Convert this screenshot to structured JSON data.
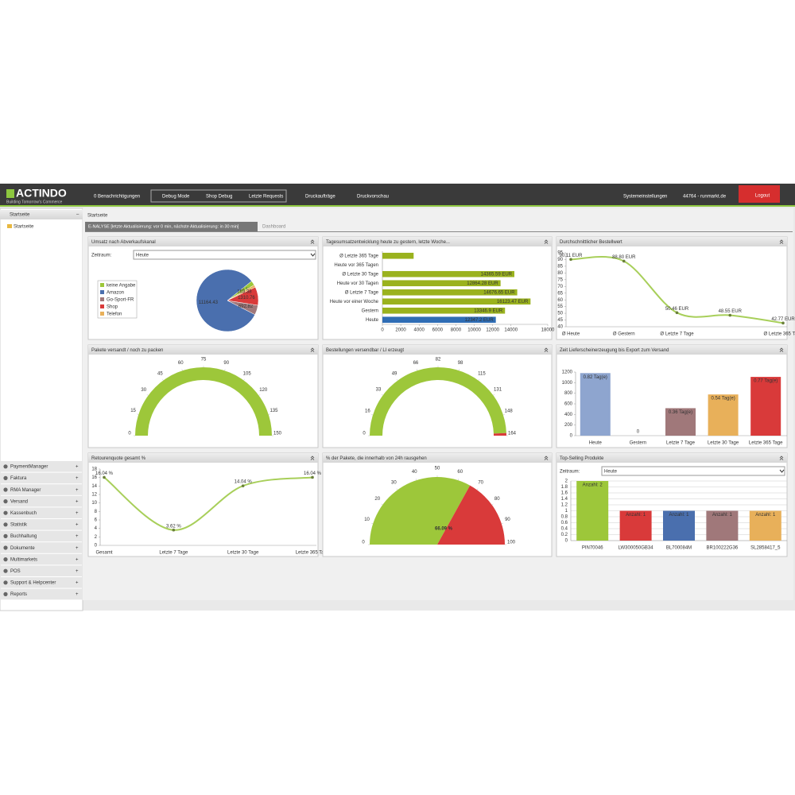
{
  "header": {
    "logo": "ACTINDO",
    "tagline": "Building Tomorrow's Commerce",
    "notifications": "0 Benachrichtigungen",
    "debug_mode": "Debug Mode",
    "shop_debug": "Shop Debug",
    "last_requests": "Letzte Requests",
    "print_jobs": "Druckaufträge",
    "print_preview": "Druckvorschau",
    "settings": "Systemeinstellungen",
    "account": "44764 - runmarkt.de",
    "logout": "Logout"
  },
  "sidebar": {
    "title": "Startseite",
    "tree": "Startseite",
    "menu": [
      "PaymentManager",
      "Faktura",
      "RMA Manager",
      "Versand",
      "Kassenbuch",
      "Statistik",
      "Buchhaltung",
      "Dokumente",
      "Multimarkets",
      "POS",
      "Support & Helpcenter",
      "Reports"
    ]
  },
  "breadcrumb": "Startseite",
  "tabs": [
    "E-NALYSE [letzte Aktualisierung: vor 0 min, nächste Aktualisierung: in 30 min]",
    "Dashboard"
  ],
  "chart_data": [
    {
      "type": "pie",
      "title": "Umsatz nach Abverkaufskanal",
      "filter_label": "Zeitraum:",
      "filter_value": "Heute",
      "categories": [
        "keine Angabe",
        "Amazon",
        "Go-Sport-FR",
        "Shop",
        "Telefon"
      ],
      "values": [
        327.11,
        11164.43,
        692.82,
        1310.76,
        163.38
      ],
      "colors": [
        "#9dc73a",
        "#4a6fae",
        "#a0787a",
        "#d93a3a",
        "#e8b05a"
      ]
    },
    {
      "type": "hbar",
      "title": "Tagesumsatzentwicklung heute zu gestern, letzte Woche...",
      "categories": [
        "Ø Letzte 365 Tage",
        "Heute vor 365 Tagen",
        "Ø Letzte 30 Tage",
        "Heute vor 30 Tagen",
        "Ø Letzte 7 Tage",
        "Heute vor einer Woche",
        "Gestern",
        "Heute"
      ],
      "values": [
        3400,
        null,
        14365.59,
        12864.28,
        14676.65,
        16123.47,
        13346.9,
        12347.2
      ],
      "value_labels": [
        null,
        null,
        "14365.59 EUR",
        "12864.28 EUR",
        "14676.65 EUR",
        "16123.47 EUR",
        "13346.9 EUR",
        "12347.2 EUR"
      ],
      "colors": [
        "#9ab21e",
        "#9ab21e",
        "#9ab21e",
        "#9ab21e",
        "#9ab21e",
        "#9ab21e",
        "#9ab21e",
        "#2f6db5"
      ],
      "xlim": [
        0,
        18000
      ],
      "xticks": [
        0,
        2000,
        4000,
        6000,
        8000,
        10000,
        12000,
        14000,
        18000
      ]
    },
    {
      "type": "line",
      "title": "Durchschnittlicher Bestellwert",
      "categories": [
        "Ø Heute",
        "Ø Gestern",
        "Ø Letzte 7 Tage",
        null,
        "Ø Letzte 365 Tage"
      ],
      "values": [
        90.11,
        88.8,
        50.46,
        48.55,
        42.77
      ],
      "value_labels": [
        "90.11 EUR",
        "88.80 EUR",
        "50.46 EUR",
        "48.55 EUR",
        "42.77 EUR"
      ],
      "color": "#a8cf5a",
      "ylim": [
        40,
        95
      ],
      "yticks": [
        40,
        45,
        50,
        55,
        60,
        65,
        70,
        75,
        80,
        85,
        90,
        95
      ]
    },
    {
      "type": "gauge",
      "title": "Pakete versandt / noch zu packen",
      "value": 150,
      "range": [
        0,
        150
      ],
      "ticks": [
        0,
        15,
        30,
        45,
        60,
        75,
        90,
        105,
        120,
        135,
        150
      ],
      "colors": [
        "#9dc73a",
        "#d93a3a"
      ]
    },
    {
      "type": "gauge",
      "title": "Bestellungen versendbar / LI erzeugt",
      "value": 162,
      "range": [
        0,
        164
      ],
      "ticks": [
        0,
        16,
        33,
        49,
        66,
        82,
        98,
        115,
        131,
        148,
        164
      ],
      "colors": [
        "#9dc73a",
        "#d93a3a"
      ]
    },
    {
      "type": "bar",
      "title": "Zeit Lieferscheinerzeugung bis Export zum Versand",
      "categories": [
        "Heute",
        "Gestern",
        "Letzte 7 Tage",
        "Letzte 30 Tage",
        "Letzte 365 Tage"
      ],
      "values": [
        1180.8,
        0,
        518.4,
        777.6,
        1108.8
      ],
      "value_labels": [
        "0.82 Tag(e)",
        "0",
        "0.36 Tag(e)",
        "0.54 Tag(e)",
        "0.77 Tag(e)"
      ],
      "colors": [
        "#8ea5cf",
        "#8ea5cf",
        "#a0787a",
        "#e8b05a",
        "#d93a3a"
      ],
      "ylim": [
        0,
        1200
      ],
      "yticks": [
        0,
        200,
        400,
        600,
        800,
        1000,
        1200
      ],
      "grid": false
    },
    {
      "type": "line",
      "title": "Retourenquote gesamt %",
      "categories": [
        "Gesamt",
        "Letzte 7 Tage",
        "Letzte 30 Tage",
        "Letzte 365 Tage"
      ],
      "values": [
        16.04,
        3.62,
        14.04,
        16.04
      ],
      "value_labels": [
        "16.04 %",
        "3.62 %",
        "14.04 %",
        "16.04 %"
      ],
      "color": "#a8cf5a",
      "ylim": [
        0,
        18
      ],
      "yticks": [
        0,
        2,
        4,
        6,
        8,
        10,
        12,
        14,
        16,
        18
      ]
    },
    {
      "type": "gauge",
      "title": "% der Pakete, die innerhalb von 24h rausgehen",
      "value": 66.09,
      "value_label": "66.09 %",
      "range": [
        0,
        100
      ],
      "ticks": [
        0,
        10,
        20,
        30,
        40,
        50,
        60,
        70,
        80,
        90,
        100
      ],
      "colors": [
        "#9dc73a",
        "#d93a3a"
      ]
    },
    {
      "type": "bar",
      "title": "Top-Selling Produkte",
      "filter_label": "Zeitraum:",
      "filter_value": "Heute",
      "categories": [
        "PIN70046",
        "LW300050GB34",
        "BL700084M",
        "BR100222G36",
        "SL2858417_5"
      ],
      "values": [
        2,
        1,
        1,
        1,
        1
      ],
      "value_labels": [
        "Anzahl: 2",
        "Anzahl: 1",
        "Anzahl: 1",
        "Anzahl: 1",
        "Anzahl: 1"
      ],
      "colors": [
        "#9dc73a",
        "#d93a3a",
        "#4a6fae",
        "#a0787a",
        "#e8b05a"
      ],
      "ylim": [
        0,
        2
      ],
      "yticks": [
        0,
        0.2,
        0.4,
        0.6,
        0.8,
        1,
        1.2,
        1.4,
        1.6,
        1.8,
        2
      ],
      "grid": true
    }
  ]
}
